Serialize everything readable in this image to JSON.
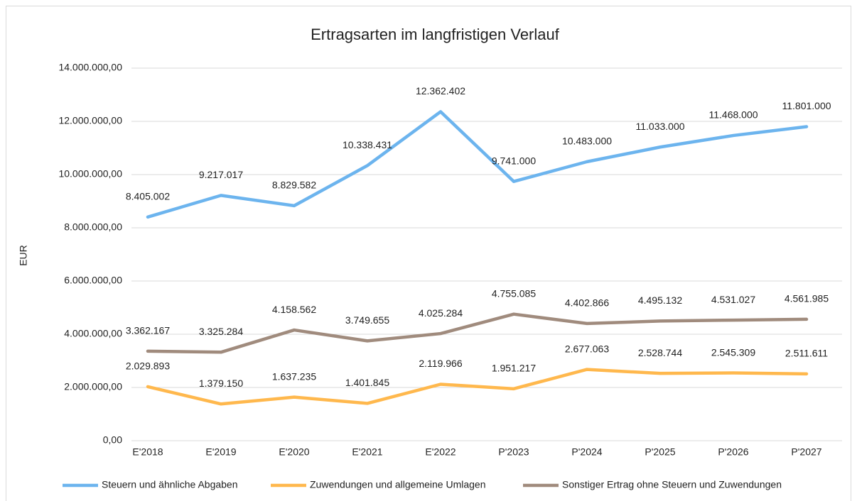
{
  "chart_data": {
    "type": "line",
    "title": "Ertragsarten im langfristigen Verlauf",
    "y_label": "EUR",
    "categories": [
      "E'2018",
      "E'2019",
      "E'2020",
      "E'2021",
      "E'2022",
      "P'2023",
      "P'2024",
      "P'2025",
      "P'2026",
      "P'2027"
    ],
    "ylim": [
      0,
      14000000
    ],
    "yticks": [
      {
        "value": 0,
        "label": "0,00"
      },
      {
        "value": 2000000,
        "label": "2.000.000,00"
      },
      {
        "value": 4000000,
        "label": "4.000.000,00"
      },
      {
        "value": 6000000,
        "label": "6.000.000,00"
      },
      {
        "value": 8000000,
        "label": "8.000.000,00"
      },
      {
        "value": 10000000,
        "label": "10.000.000,00"
      },
      {
        "value": 12000000,
        "label": "12.000.000,00"
      },
      {
        "value": 14000000,
        "label": "14.000.000,00"
      }
    ],
    "grid": true,
    "legend": "bottom",
    "series": [
      {
        "name": "Steuern und ähnliche Abgaben",
        "color": "#6cb4ee",
        "values": [
          8405002,
          9217017,
          8829582,
          10338431,
          12362402,
          9741000,
          10483000,
          11033000,
          11468000,
          11801000
        ],
        "value_labels": [
          "8.405.002",
          "9.217.017",
          "8.829.582",
          "10.338.431",
          "12.362.402",
          "9.741.000",
          "10.483.000",
          "11.033.000",
          "11.468.000",
          "11.801.000"
        ]
      },
      {
        "name": "Zuwendungen und allgemeine Umlagen",
        "color": "#ffb84d",
        "values": [
          2029893,
          1379150,
          1637235,
          1401845,
          2119966,
          1951217,
          2677063,
          2528744,
          2545309,
          2511611
        ],
        "value_labels": [
          "2.029.893",
          "1.379.150",
          "1.637.235",
          "1.401.845",
          "2.119.966",
          "1.951.217",
          "2.677.063",
          "2.528.744",
          "2.545.309",
          "2.511.611"
        ]
      },
      {
        "name": "Sonstiger Ertrag ohne Steuern und Zuwendungen",
        "color": "#a08b7d",
        "values": [
          3362167,
          3325284,
          4158562,
          3749655,
          4025284,
          4755085,
          4402866,
          4495132,
          4531027,
          4561985
        ],
        "value_labels": [
          "3.362.167",
          "3.325.284",
          "4.158.562",
          "3.749.655",
          "4.025.284",
          "4.755.085",
          "4.402.866",
          "4.495.132",
          "4.531.027",
          "4.561.985"
        ]
      }
    ]
  }
}
